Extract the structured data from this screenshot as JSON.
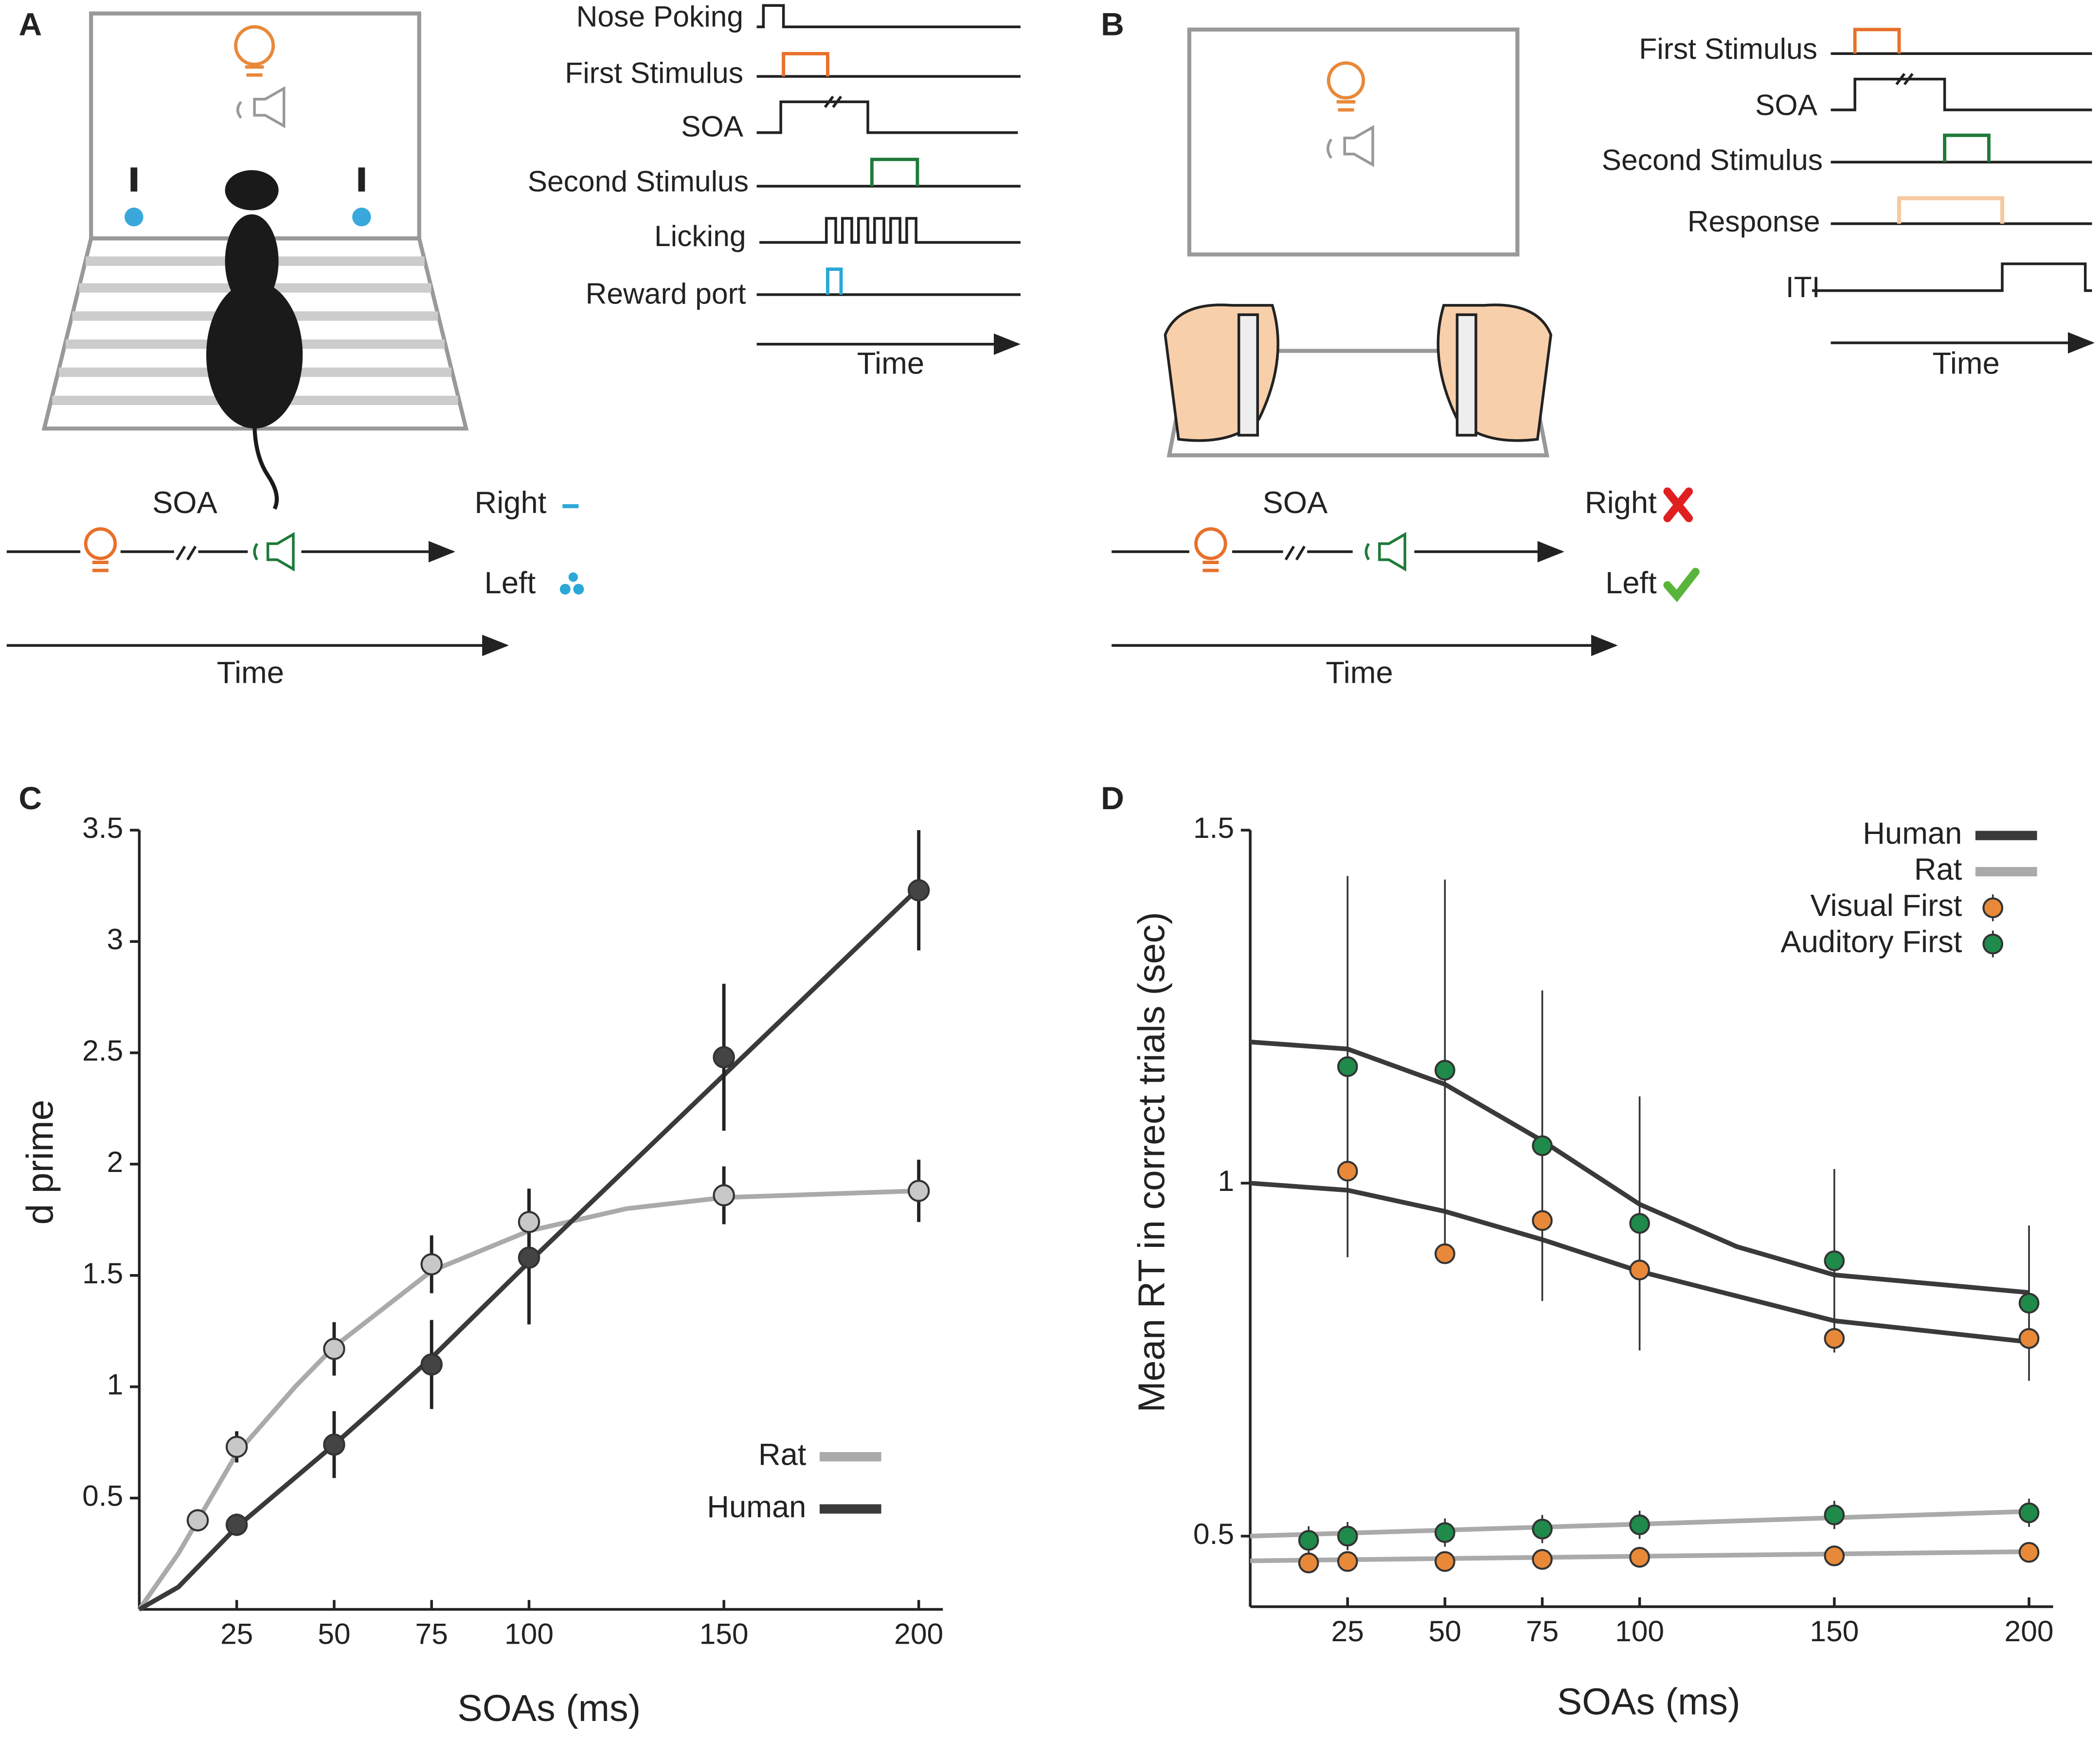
{
  "panels": {
    "A": {
      "label": "A",
      "signals": [
        "Nose Poking",
        "First Stimulus",
        "SOA",
        "Second Stimulus",
        "Licking",
        "Reward port"
      ],
      "time_top": "Time",
      "soa": "SOA",
      "right": "Right",
      "left": "Left",
      "time_bottom": "Time"
    },
    "B": {
      "label": "B",
      "signals": [
        "First Stimulus",
        "SOA",
        "Second Stimulus",
        "Response",
        "ITI"
      ],
      "time_top": "Time",
      "soa": "SOA",
      "right": "Right",
      "left": "Left",
      "time_bottom": "Time"
    }
  },
  "chart_data": [
    {
      "type": "line",
      "panel": "C",
      "xlabel": "SOAs (ms)",
      "ylabel": "d prime",
      "xlim": [
        0,
        200
      ],
      "xticks": [
        25,
        50,
        75,
        100,
        150,
        200
      ],
      "ylim": [
        0,
        3.5
      ],
      "yticks": [
        0.5,
        1,
        1.5,
        2,
        2.5,
        3,
        3.5
      ],
      "legend": "lower right",
      "series": [
        {
          "name": "Rat",
          "color": "#aaaaaa",
          "point_color": "#c8c8c8",
          "x": [
            15,
            25,
            50,
            75,
            100,
            150,
            200
          ],
          "values": [
            0.4,
            0.73,
            1.17,
            1.55,
            1.74,
            1.86,
            1.88
          ],
          "errors": [
            0.05,
            0.07,
            0.12,
            0.13,
            0.15,
            0.13,
            0.14
          ],
          "fit_x": [
            0,
            10,
            20,
            25,
            40,
            50,
            75,
            100,
            125,
            150,
            200
          ],
          "fit": [
            0,
            0.25,
            0.55,
            0.7,
            1.0,
            1.18,
            1.52,
            1.7,
            1.8,
            1.85,
            1.88
          ]
        },
        {
          "name": "Human",
          "color": "#3a3a3a",
          "point_color": "#444444",
          "x": [
            25,
            50,
            75,
            100,
            150,
            200
          ],
          "values": [
            0.38,
            0.74,
            1.1,
            1.58,
            2.48,
            3.23
          ],
          "errors": [
            0.05,
            0.15,
            0.2,
            0.3,
            0.33,
            0.27
          ],
          "fit_x": [
            0,
            10,
            25,
            50,
            75,
            100,
            150,
            200
          ],
          "fit": [
            0,
            0.1,
            0.37,
            0.74,
            1.13,
            1.56,
            2.4,
            3.24
          ]
        }
      ]
    },
    {
      "type": "line",
      "panel": "D",
      "xlabel": "SOAs (ms)",
      "ylabel": "Mean RT in correct trials (sec)",
      "xlim": [
        0,
        200
      ],
      "xticks": [
        25,
        50,
        75,
        100,
        150,
        200
      ],
      "ylim": [
        0.4,
        1.5
      ],
      "yticks": [
        0.5,
        1,
        1.5
      ],
      "legend": "upper right",
      "markers": [
        {
          "name": "Visual First",
          "color": "#e8893a"
        },
        {
          "name": "Auditory First",
          "color": "#1f8a4a"
        }
      ],
      "series": [
        {
          "name": "Human",
          "color": "#3a3a3a",
          "conditions": [
            {
              "x": [
                25,
                50,
                75,
                100,
                150,
                200
              ],
              "values": [
                1.017,
                0.9,
                0.947,
                0.877,
                0.78,
                0.78
              ],
              "fit_x": [
                0,
                25,
                50,
                75,
                100,
                150,
                200
              ],
              "fit": [
                1.0,
                0.99,
                0.96,
                0.92,
                0.875,
                0.805,
                0.775
              ]
            },
            {
              "x": [
                25,
                50,
                75,
                100,
                150,
                200
              ],
              "values": [
                1.165,
                1.16,
                1.053,
                0.943,
                0.89,
                0.83
              ],
              "errors": [
                0.27,
                0.27,
                0.22,
                0.18,
                0.13,
                0.11
              ],
              "fit_x": [
                0,
                25,
                50,
                75,
                100,
                125,
                150,
                200
              ],
              "fit": [
                1.2,
                1.19,
                1.14,
                1.06,
                0.97,
                0.91,
                0.87,
                0.845
              ]
            }
          ]
        },
        {
          "name": "Rat",
          "color": "#aaaaaa",
          "conditions": [
            {
              "x": [
                15,
                25,
                50,
                75,
                100,
                150,
                200
              ],
              "values": [
                0.462,
                0.464,
                0.464,
                0.467,
                0.47,
                0.472,
                0.477
              ],
              "fit_x": [
                0,
                200
              ],
              "fit": [
                0.465,
                0.478
              ]
            },
            {
              "x": [
                15,
                25,
                50,
                75,
                100,
                150,
                200
              ],
              "values": [
                0.494,
                0.5,
                0.505,
                0.51,
                0.516,
                0.53,
                0.533
              ],
              "errors": [
                0.02,
                0.02,
                0.02,
                0.02,
                0.02,
                0.02,
                0.02
              ],
              "fit_x": [
                0,
                100,
                200
              ],
              "fit": [
                0.5,
                0.517,
                0.535
              ]
            }
          ]
        }
      ]
    }
  ]
}
